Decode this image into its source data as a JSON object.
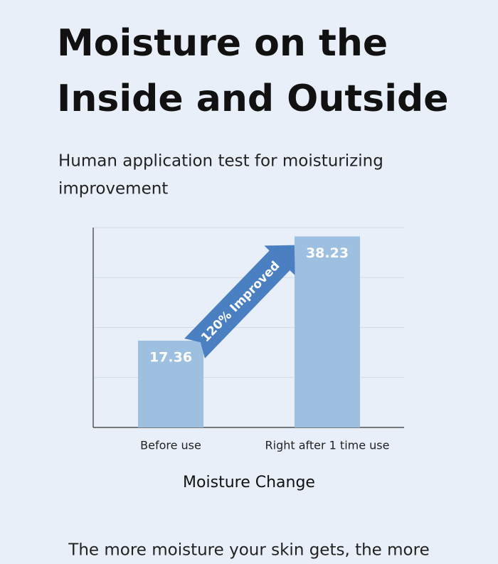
{
  "header": {
    "title_lines": [
      "Moisture on the",
      "Inside and Outside"
    ],
    "subtitle_lines": [
      "Human application test for moisturizing",
      "improvement"
    ]
  },
  "chart_data": {
    "type": "bar",
    "categories": [
      "Before use",
      "Right after 1 time use"
    ],
    "values": [
      17.36,
      38.23
    ],
    "color": "#9dbfe0",
    "x_label": "Moisture Change",
    "annotation": "120% Improved",
    "ylim": [
      0,
      40
    ],
    "yticks": [
      0,
      10,
      20,
      30,
      40
    ],
    "grid": true
  },
  "footer_text": "The more moisture your skin gets, the more"
}
